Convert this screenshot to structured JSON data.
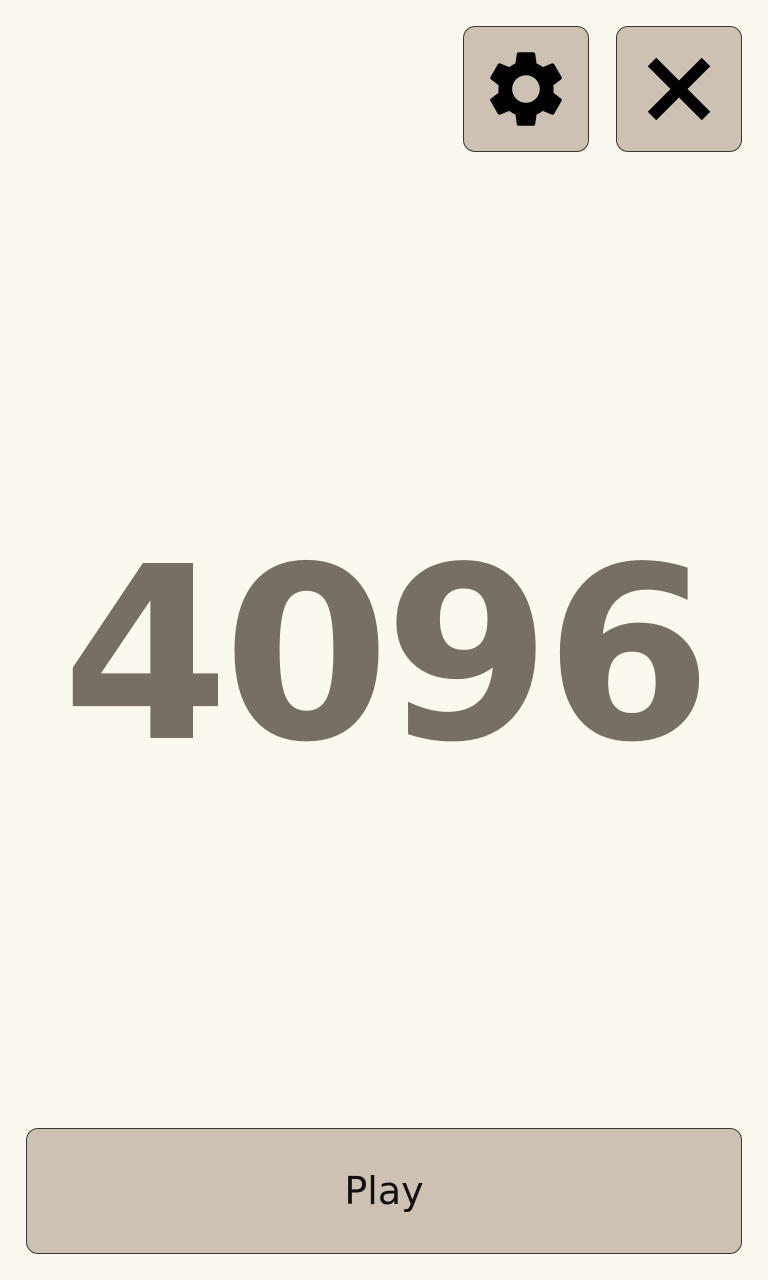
{
  "title": "4096",
  "buttons": {
    "play_label": "Play",
    "settings_icon": "gear-icon",
    "close_icon": "close-icon"
  },
  "colors": {
    "background": "#fbf8ef",
    "button": "#cdc1b4",
    "title_text": "#776e65",
    "icon": "#000000"
  }
}
